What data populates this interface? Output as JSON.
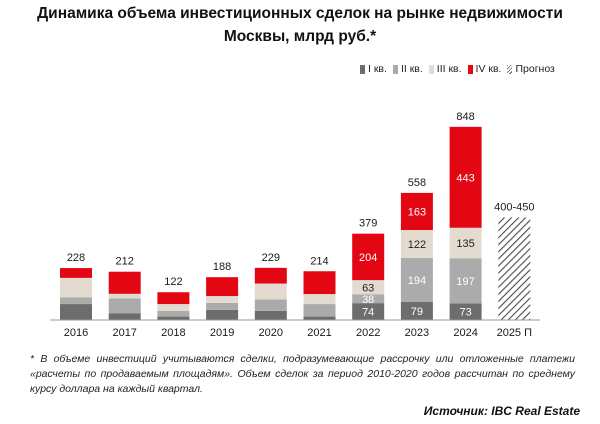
{
  "title": "Динамика объема инвестиционных сделок на рынке недвижимости Москвы, млрд руб.*",
  "footnote": "* В объеме инвестиций учитываются сделки, подразумевающие рассрочку или отложенные платежи «расчеты по продаваемым площадям». Объем сделок за период 2010-2020 годов рассчитан по среднему курсу доллара на каждый квартал.",
  "source": "Источник: IBC Real Estate",
  "legend": [
    {
      "label": "I кв.",
      "color": "#6d6d6d"
    },
    {
      "label": "II кв.",
      "color": "#ababab"
    },
    {
      "label": "III кв.",
      "color": "#e3dbd0"
    },
    {
      "label": "IV кв.",
      "color": "#e30613"
    },
    {
      "label": "Прогноз",
      "color": "hatch"
    }
  ],
  "chart_data": {
    "type": "bar",
    "stacked": true,
    "categories": [
      "2016",
      "2017",
      "2018",
      "2019",
      "2020",
      "2021",
      "2022",
      "2023",
      "2024",
      "2025 П"
    ],
    "series": [
      {
        "name": "I кв.",
        "color": "#6d6d6d",
        "values": [
          70,
          30,
          15,
          45,
          40,
          15,
          74,
          79,
          73,
          null
        ]
      },
      {
        "name": "II кв.",
        "color": "#ababab",
        "values": [
          30,
          65,
          25,
          30,
          50,
          55,
          38,
          194,
          197,
          null
        ]
      },
      {
        "name": "III кв.",
        "color": "#e3dbd0",
        "values": [
          85,
          20,
          30,
          30,
          70,
          44,
          63,
          122,
          135,
          null
        ]
      },
      {
        "name": "IV кв.",
        "color": "#e30613",
        "values": [
          43,
          97,
          52,
          83,
          69,
          100,
          204,
          163,
          443,
          null
        ]
      }
    ],
    "totals": [
      "228",
      "212",
      "122",
      "188",
      "229",
      "214",
      "379",
      "558",
      "848",
      "400-450"
    ],
    "forecast": {
      "category": "2025 П",
      "value": 450,
      "label": "400-450"
    },
    "segment_labels_from_index": 6,
    "ylim": [
      0,
      900
    ],
    "grid": false,
    "legend_position": "top-right"
  }
}
